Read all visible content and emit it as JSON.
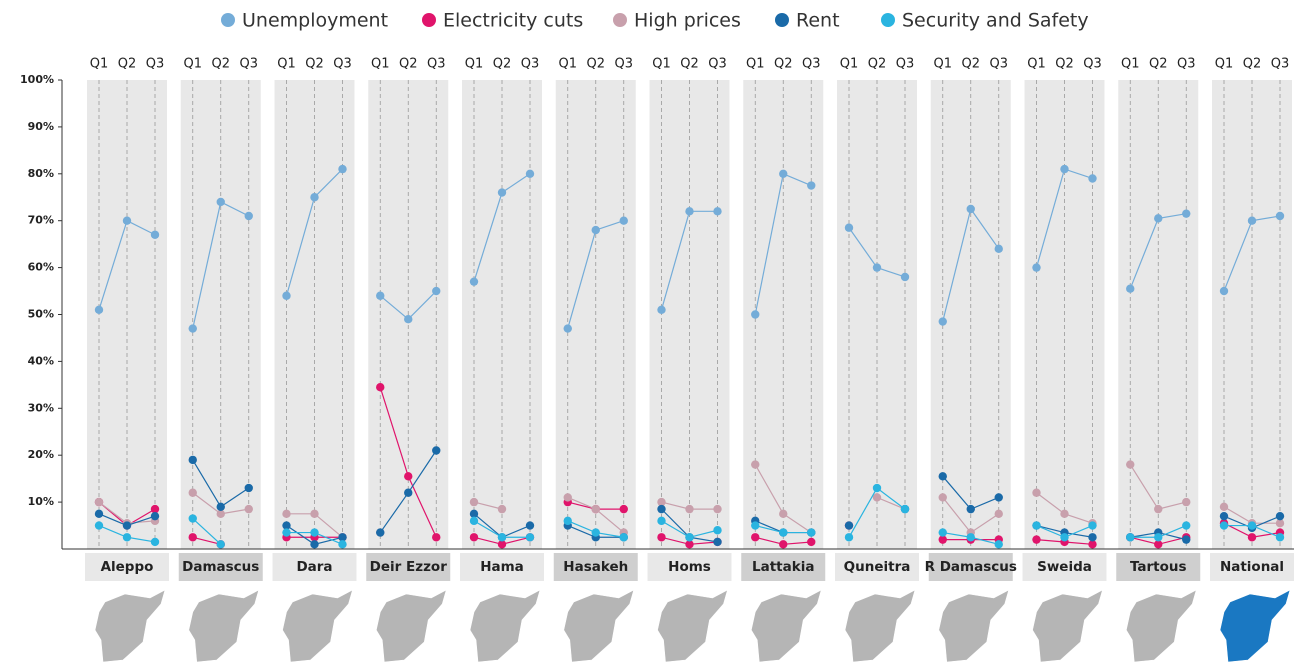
{
  "chart_data": {
    "type": "line",
    "legend": [
      {
        "name": "Unemployment",
        "color": "#74acd8"
      },
      {
        "name": "Electricity cuts",
        "color": "#e0146b"
      },
      {
        "name": "High prices",
        "color": "#c8a0ac"
      },
      {
        "name": "Rent",
        "color": "#1a6aa8"
      },
      {
        "name": "Security and Safety",
        "color": "#2ab4e0"
      }
    ],
    "categories": [
      "Q1",
      "Q2",
      "Q3"
    ],
    "ylim": [
      0,
      100
    ],
    "yticks": [
      {
        "value": 10,
        "label": "10%"
      },
      {
        "value": 20,
        "label": "20%"
      },
      {
        "value": 30,
        "label": "30%"
      },
      {
        "value": 40,
        "label": "40%"
      },
      {
        "value": 50,
        "label": "50%"
      },
      {
        "value": 60,
        "label": "60%"
      },
      {
        "value": 70,
        "label": "70%"
      },
      {
        "value": 80,
        "label": "80%"
      },
      {
        "value": 90,
        "label": "90%"
      },
      {
        "value": 100,
        "label": "100%"
      }
    ],
    "panels": [
      {
        "title": "Aleppo",
        "values": [
          [
            51,
            70,
            67
          ],
          [
            10,
            5,
            8.5
          ],
          [
            10,
            5.5,
            6
          ],
          [
            7.5,
            5,
            7
          ],
          [
            5,
            2.5,
            1.5
          ]
        ]
      },
      {
        "title": "Damascus",
        "values": [
          [
            47,
            74,
            71
          ],
          [
            2.5,
            1,
            null
          ],
          [
            12,
            7.5,
            8.5
          ],
          [
            19,
            9,
            13
          ],
          [
            6.5,
            1,
            null
          ]
        ]
      },
      {
        "title": "Dara",
        "values": [
          [
            54,
            75,
            81
          ],
          [
            2.5,
            2.5,
            2.5
          ],
          [
            7.5,
            7.5,
            2.5
          ],
          [
            5,
            1,
            2.5
          ],
          [
            3.5,
            3.5,
            1
          ]
        ]
      },
      {
        "title": "Deir Ezzor",
        "values": [
          [
            54,
            49,
            55
          ],
          [
            34.5,
            15.5,
            2.5
          ],
          [
            3.5,
            null,
            null
          ],
          [
            3.5,
            12,
            21
          ],
          [
            null,
            null,
            null
          ]
        ]
      },
      {
        "title": "Hama",
        "values": [
          [
            57,
            76,
            80
          ],
          [
            2.5,
            1,
            2.5
          ],
          [
            10,
            8.5,
            null
          ],
          [
            7.5,
            2.5,
            5
          ],
          [
            6,
            2.5,
            2.5
          ]
        ]
      },
      {
        "title": "Hasakeh",
        "values": [
          [
            47,
            68,
            70
          ],
          [
            10,
            8.5,
            8.5
          ],
          [
            11,
            8.5,
            3.5
          ],
          [
            5,
            2.5,
            2.5
          ],
          [
            6,
            3.5,
            2.5
          ]
        ]
      },
      {
        "title": "Homs",
        "values": [
          [
            51,
            72,
            72
          ],
          [
            2.5,
            1,
            1.5
          ],
          [
            10,
            8.5,
            8.5
          ],
          [
            8.5,
            2.5,
            1.5
          ],
          [
            6,
            2.5,
            4
          ]
        ]
      },
      {
        "title": "Lattakia",
        "values": [
          [
            50,
            80,
            77.5
          ],
          [
            2.5,
            1,
            1.5
          ],
          [
            18,
            7.5,
            3.5
          ],
          [
            6,
            3.5,
            3.5
          ],
          [
            5,
            3.5,
            3.5
          ]
        ]
      },
      {
        "title": "Quneitra",
        "values": [
          [
            68.5,
            60,
            58
          ],
          [
            5,
            null,
            null
          ],
          [
            null,
            11,
            8.5
          ],
          [
            5,
            null,
            8.5
          ],
          [
            2.5,
            13,
            8.5
          ]
        ]
      },
      {
        "title": "R Damascus",
        "values": [
          [
            48.5,
            72.5,
            64
          ],
          [
            2,
            2,
            2
          ],
          [
            11,
            3.5,
            7.5
          ],
          [
            15.5,
            8.5,
            11
          ],
          [
            3.5,
            2.5,
            1
          ]
        ]
      },
      {
        "title": "Sweida",
        "values": [
          [
            60,
            81,
            79
          ],
          [
            2,
            1.5,
            1
          ],
          [
            12,
            7.5,
            5.5
          ],
          [
            5,
            3.5,
            2.5
          ],
          [
            5,
            2.5,
            5
          ]
        ]
      },
      {
        "title": "Tartous",
        "values": [
          [
            55.5,
            70.5,
            71.5
          ],
          [
            2.5,
            1,
            2.5
          ],
          [
            18,
            8.5,
            10
          ],
          [
            2.5,
            3.5,
            2
          ],
          [
            2.5,
            2.5,
            5
          ]
        ]
      },
      {
        "title": "National",
        "values": [
          [
            55,
            70,
            71
          ],
          [
            5.5,
            2.5,
            3.5
          ],
          [
            9,
            5.5,
            5.5
          ],
          [
            7,
            4.5,
            7
          ],
          [
            5,
            5,
            2.5
          ]
        ]
      }
    ]
  }
}
